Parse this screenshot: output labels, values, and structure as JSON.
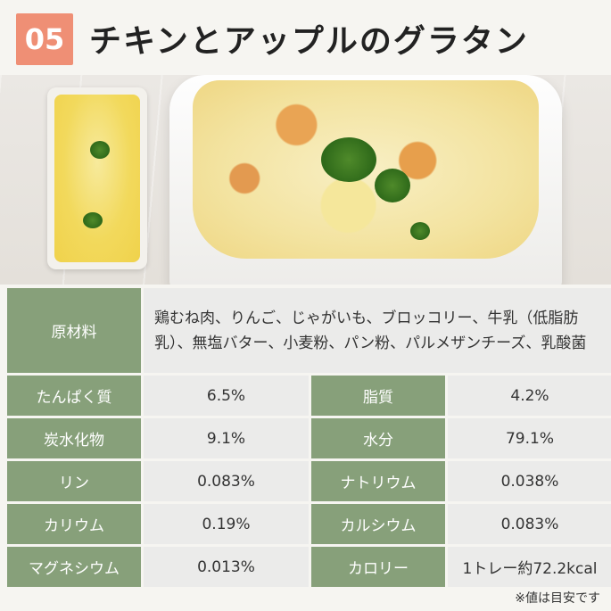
{
  "header": {
    "number": "05",
    "title": "チキンとアップルのグラタン"
  },
  "table": {
    "ingredients_label": "原材料",
    "ingredients": "鶏むね肉、りんご、じゃがいも、ブロッコリー、牛乳（低脂肪乳）、無塩バター、小麦粉、パン粉、パルメザンチーズ、乳酸菌",
    "rows": [
      {
        "label1": "たんぱく質",
        "value1": "6.5%",
        "label2": "脂質",
        "value2": "4.2%"
      },
      {
        "label1": "炭水化物",
        "value1": "9.1%",
        "label2": "水分",
        "value2": "79.1%"
      },
      {
        "label1": "リン",
        "value1": "0.083%",
        "label2": "ナトリウム",
        "value2": "0.038%"
      },
      {
        "label1": "カリウム",
        "value1": "0.19%",
        "label2": "カルシウム",
        "value2": "0.083%"
      },
      {
        "label1": "マグネシウム",
        "value1": "0.013%",
        "label2": "カロリー",
        "value2": "1トレー約72.2kcal"
      }
    ]
  },
  "footnote": "※値は目安です",
  "colors": {
    "badge": "#ef8f75",
    "label_bg": "#87a07a",
    "value_bg": "#ebebea"
  }
}
